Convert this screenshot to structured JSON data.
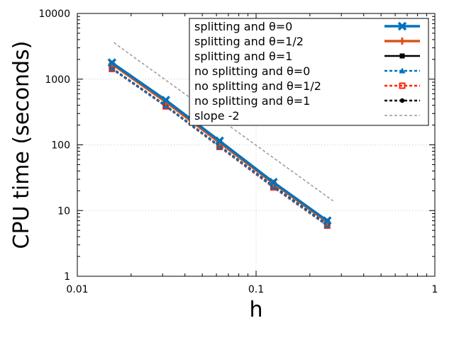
{
  "chart_data": {
    "type": "line",
    "xlabel": "h",
    "ylabel": "CPU time (seconds)",
    "x_scale": "log",
    "y_scale": "log",
    "xlim": [
      0.01,
      1
    ],
    "ylim": [
      1,
      10000
    ],
    "x_ticks": [
      {
        "value": 0.01,
        "label": "0.01"
      },
      {
        "value": 0.1,
        "label": "0.1"
      },
      {
        "value": 1,
        "label": "1"
      }
    ],
    "y_ticks": [
      {
        "value": 1,
        "label": "1"
      },
      {
        "value": 10,
        "label": "10"
      },
      {
        "value": 100,
        "label": "100"
      },
      {
        "value": 1000,
        "label": "1000"
      },
      {
        "value": 10000,
        "label": "10000"
      }
    ],
    "grid": true,
    "legend_position": "top-right",
    "series": [
      {
        "name": "splitting and θ=0",
        "color": "#0072bd",
        "dash": "solid",
        "marker": "x-cross",
        "line_weight": "thick",
        "x": [
          0.015625,
          0.03125,
          0.0625,
          0.125,
          0.25
        ],
        "y": [
          1780,
          480,
          115,
          27,
          7.0
        ]
      },
      {
        "name": "splitting and θ=1/2",
        "color": "#d95319",
        "dash": "solid",
        "marker": "plus",
        "line_weight": "thick",
        "x": [
          0.015625,
          0.03125,
          0.0625,
          0.125,
          0.25
        ],
        "y": [
          1700,
          450,
          108,
          26,
          6.7
        ]
      },
      {
        "name": "splitting and θ=1",
        "color": "#000000",
        "dash": "solid",
        "marker": "square",
        "line_weight": "medium",
        "x": [
          0.015625,
          0.03125,
          0.0625,
          0.125,
          0.25
        ],
        "y": [
          1720,
          460,
          110,
          26.5,
          6.8
        ]
      },
      {
        "name": "no splitting and θ=0",
        "color": "#0072bd",
        "dash": "dashed",
        "marker": "triangle",
        "line_weight": "medium",
        "x": [
          0.015625,
          0.03125,
          0.0625,
          0.125,
          0.25
        ],
        "y": [
          1450,
          390,
          95,
          23,
          6.0
        ]
      },
      {
        "name": "no splitting and θ=1/2",
        "color": "#ff2200",
        "dash": "dashed",
        "marker": "open-square",
        "line_weight": "medium",
        "x": [
          0.015625,
          0.03125,
          0.0625,
          0.125,
          0.25
        ],
        "y": [
          1430,
          385,
          93,
          22.5,
          5.9
        ]
      },
      {
        "name": "no splitting and θ=1",
        "color": "#000000",
        "dash": "dashed",
        "marker": "dot",
        "line_weight": "medium",
        "x": [
          0.015625,
          0.03125,
          0.0625,
          0.125,
          0.25
        ],
        "y": [
          1470,
          395,
          96,
          23.5,
          6.1
        ]
      },
      {
        "name": "slope -2",
        "color": "#999999",
        "dash": "dashed",
        "marker": "none",
        "line_weight": "thin",
        "x": [
          0.016,
          0.27
        ],
        "y": [
          3600,
          14
        ]
      }
    ]
  }
}
